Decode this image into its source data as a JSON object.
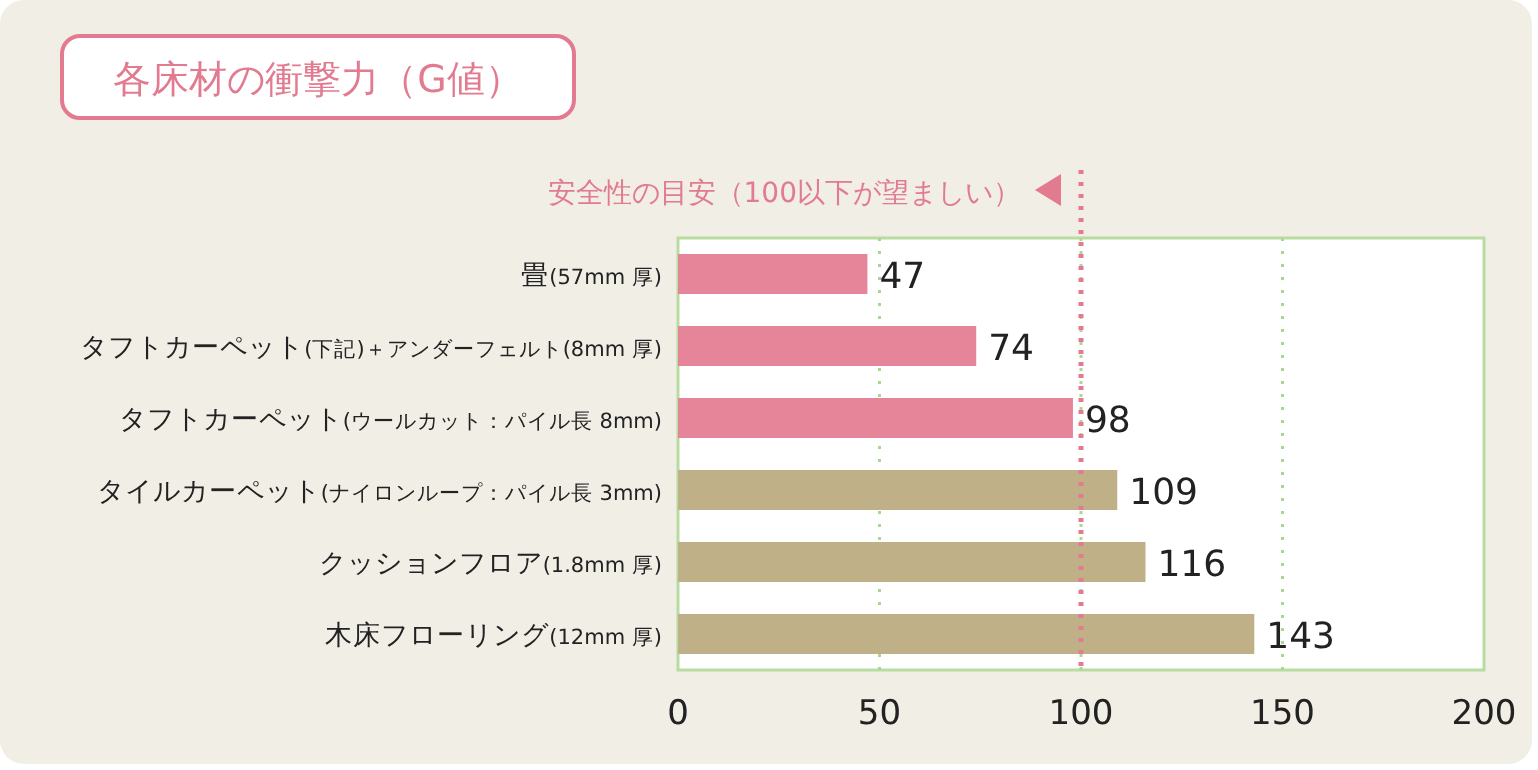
{
  "chart_data": {
    "type": "bar",
    "orientation": "horizontal",
    "title": "各床材の衝撃力（G値）",
    "categories": [
      "畳(57mm 厚)",
      "タフトカーペット(下記)＋アンダーフェルト(8mm 厚)",
      "タフトカーペット(ウールカット：パイル長 8mm)",
      "タイルカーペット(ナイロンループ：パイル長 3mm)",
      "クッションフロア(1.8mm 厚)",
      "木床フローリング(12mm 厚)"
    ],
    "values": [
      47,
      74,
      98,
      109,
      116,
      143
    ],
    "colors": [
      "#e6859a",
      "#e6859a",
      "#e6859a",
      "#bfb088",
      "#bfb088",
      "#bfb088"
    ],
    "xlim": [
      0,
      200
    ],
    "xticks": [
      0,
      50,
      100,
      150,
      200
    ],
    "grid": "x",
    "data_labels": true,
    "ref_lines": [
      {
        "axis": "x",
        "value": 100,
        "label": "安全性の目安（100以下が望ましい）",
        "color": "#e27a90",
        "line_style": "dotted"
      }
    ]
  }
}
